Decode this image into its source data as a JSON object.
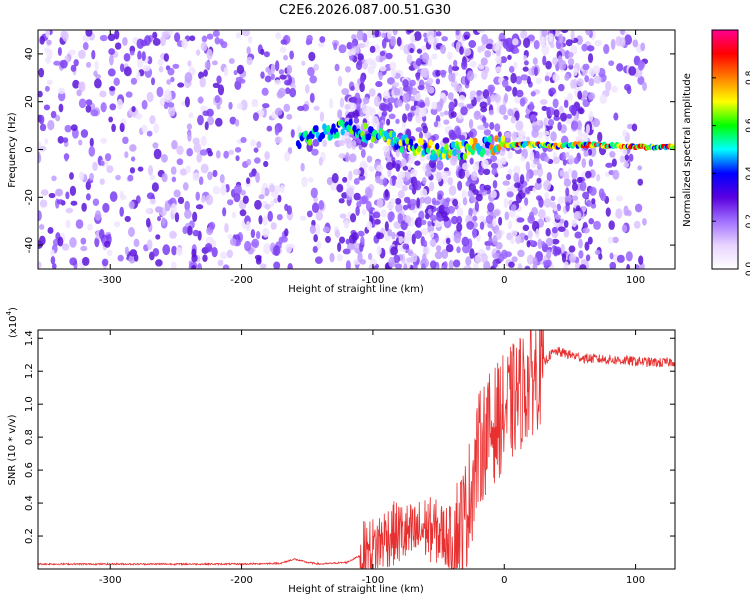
{
  "title": "C2E6.2026.087.00.51.G30",
  "chart_data": [
    {
      "type": "heatmap",
      "title": "C2E6.2026.087.00.51.G30",
      "xlabel": "Height of straight line (km)",
      "ylabel": "Frequency (Hz)",
      "xlim": [
        -355,
        130
      ],
      "ylim": [
        -50,
        50
      ],
      "x_ticks": [
        -300,
        -200,
        -100,
        0,
        100
      ],
      "x_tick_labels": [
        "-300",
        "-200",
        "-100",
        "0",
        "100"
      ],
      "y_ticks": [
        -40,
        -20,
        0,
        20,
        40
      ],
      "y_tick_labels": [
        "-40",
        "-20",
        "0",
        "20",
        "40"
      ],
      "colorbar": {
        "label": "Normalized spectral amplitude",
        "range": [
          0,
          1
        ],
        "ticks": [
          0.0,
          0.2,
          0.4,
          0.6,
          0.8
        ],
        "tick_labels": [
          "0.0",
          "0.2",
          "0.4",
          "0.6",
          "0.8"
        ],
        "colors": [
          "#ffffff",
          "#e8d4ff",
          "#a070ff",
          "#5a00e0",
          "#0000ff",
          "#00ffff",
          "#00ff00",
          "#ffff00",
          "#ff8000",
          "#ff0000",
          "#ff0090"
        ]
      },
      "regions": [
        {
          "name": "noise",
          "x_range": [
            -355,
            -160
          ],
          "intensity": 0.25
        },
        {
          "name": "gap",
          "x_range": [
            -160,
            -155
          ],
          "intensity": 0.02
        },
        {
          "name": "noise",
          "x_range": [
            -155,
            -120
          ],
          "intensity": 0.2
        },
        {
          "name": "signal",
          "x_range": [
            -120,
            68
          ],
          "intensity": 0.6
        },
        {
          "name": "noise",
          "x_range": [
            70,
            108
          ],
          "intensity": 0.2
        }
      ],
      "signal_ridge": [
        {
          "x": -157,
          "f": 4,
          "amp": 0.4
        },
        {
          "x": -120,
          "f": 10,
          "amp": 0.45
        },
        {
          "x": -100,
          "f": 6,
          "amp": 0.5
        },
        {
          "x": -80,
          "f": 3,
          "amp": 0.55
        },
        {
          "x": -60,
          "f": 0,
          "amp": 0.6
        },
        {
          "x": -40,
          "f": -1,
          "amp": 0.65
        },
        {
          "x": -20,
          "f": 1,
          "amp": 0.7
        },
        {
          "x": 0,
          "f": 2,
          "amp": 0.72
        },
        {
          "x": 20,
          "f": 2,
          "amp": 0.75
        },
        {
          "x": 40,
          "f": 1.5,
          "amp": 0.8
        },
        {
          "x": 60,
          "f": 2,
          "amp": 0.82
        },
        {
          "x": 68,
          "f": 2,
          "amp": 0.85
        },
        {
          "x": 110,
          "f": 1,
          "amp": 0.9
        },
        {
          "x": 130,
          "f": 1,
          "amp": 0.92
        }
      ]
    },
    {
      "type": "line",
      "xlabel": "Height of straight line (km)",
      "ylabel": "SNR (10 * v/v)",
      "scale_label": "(x10",
      "scale_exponent": "4",
      "scale_suffix": ")",
      "xlim": [
        -355,
        130
      ],
      "ylim": [
        0,
        1.45
      ],
      "x_ticks": [
        -300,
        -200,
        -100,
        0,
        100
      ],
      "x_tick_labels": [
        "-300",
        "-200",
        "-100",
        "0",
        "100"
      ],
      "y_ticks": [
        0.2,
        0.4,
        0.6,
        0.8,
        1.0,
        1.2,
        1.4
      ],
      "y_tick_labels": [
        "0.2",
        "0.4",
        "0.6",
        "0.8",
        "1.0",
        "1.2",
        "1.4"
      ],
      "series": [
        {
          "name": "SNR",
          "color": "#e83030",
          "x": [
            -355,
            -300,
            -250,
            -200,
            -170,
            -160,
            -150,
            -140,
            -120,
            -110,
            -100,
            -90,
            -80,
            -70,
            -60,
            -50,
            -40,
            -30,
            -25,
            -20,
            -15,
            -10,
            -5,
            0,
            10,
            20,
            30,
            35,
            40,
            50,
            60,
            80,
            100,
            120,
            130
          ],
          "y": [
            0.03,
            0.03,
            0.03,
            0.03,
            0.035,
            0.06,
            0.04,
            0.03,
            0.04,
            0.08,
            0.12,
            0.2,
            0.22,
            0.2,
            0.25,
            0.22,
            0.18,
            0.3,
            0.5,
            0.7,
            0.8,
            0.85,
            0.9,
            0.95,
            1.05,
            1.15,
            1.25,
            1.3,
            1.32,
            1.3,
            1.28,
            1.27,
            1.26,
            1.25,
            1.26
          ]
        }
      ]
    }
  ]
}
